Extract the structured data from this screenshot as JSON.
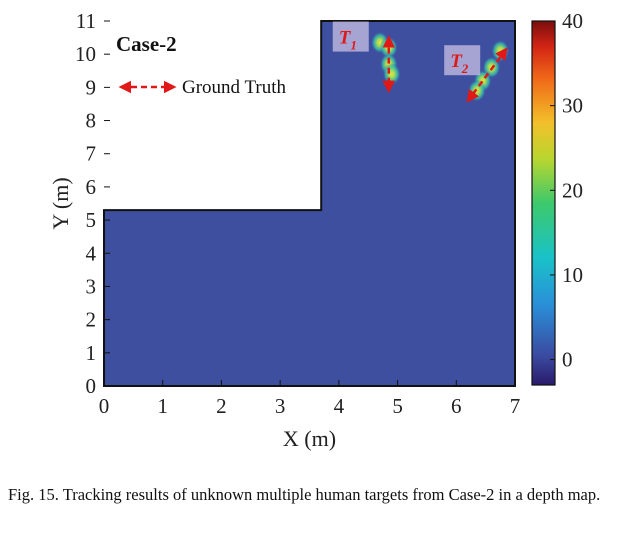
{
  "chart_data": {
    "type": "heatmap",
    "title": "",
    "panel_title": "Case-2",
    "xlabel": "X (m)",
    "ylabel": "Y (m)",
    "xlim": [
      0,
      7
    ],
    "ylim": [
      0,
      11
    ],
    "xticks": [
      "0",
      "1",
      "2",
      "3",
      "4",
      "5",
      "6",
      "7"
    ],
    "yticks": [
      "0",
      "1",
      "2",
      "3",
      "4",
      "5",
      "6",
      "7",
      "8",
      "9",
      "10",
      "11"
    ],
    "region": {
      "lshape_outline": [
        [
          0,
          0
        ],
        [
          7,
          0
        ],
        [
          7,
          11
        ],
        [
          3.7,
          11
        ],
        [
          3.7,
          5.3
        ],
        [
          0,
          5.3
        ]
      ],
      "background_value": 0
    },
    "colorbar": {
      "ticks": [
        "0",
        "10",
        "20",
        "30",
        "40"
      ],
      "range": [
        -3,
        40
      ]
    },
    "legend": {
      "label": "Ground Truth",
      "placement": "top-left"
    },
    "targets": [
      {
        "name": "T1",
        "base": "T",
        "sub": "1",
        "ground_truth": [
          [
            4.85,
            10.5
          ],
          [
            4.85,
            8.9
          ]
        ],
        "track": [
          [
            4.7,
            10.35
          ],
          [
            4.85,
            10.2
          ],
          [
            4.85,
            9.7
          ],
          [
            4.9,
            9.4
          ]
        ]
      },
      {
        "name": "T2",
        "base": "T",
        "sub": "2",
        "ground_truth": [
          [
            6.85,
            10.15
          ],
          [
            6.2,
            8.6
          ]
        ],
        "track": [
          [
            6.75,
            10.1
          ],
          [
            6.6,
            9.6
          ],
          [
            6.45,
            9.2
          ],
          [
            6.35,
            8.9
          ]
        ]
      }
    ]
  },
  "caption": "Fig. 15.  Tracking results of unknown multiple human targets from Case-2 in a depth map."
}
